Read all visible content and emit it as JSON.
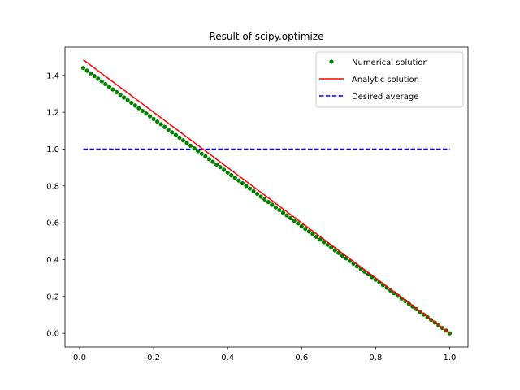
{
  "chart_data": {
    "type": "line",
    "title": "Result of scipy.optimize",
    "xlabel": "",
    "ylabel": "",
    "xlim": [
      -0.0395,
      1.0495
    ],
    "ylim": [
      -0.0744,
      1.5534
    ],
    "xticks": [
      "0.0",
      "0.2",
      "0.4",
      "0.6",
      "0.8",
      "1.0"
    ],
    "yticks": [
      "0.0",
      "0.2",
      "0.4",
      "0.6",
      "0.8",
      "1.0",
      "1.2",
      "1.4"
    ],
    "grid": false,
    "legend_position": "top-right",
    "series": [
      {
        "name": "Numerical solution",
        "style": "points",
        "color": "#008000",
        "x_range": [
          0.01,
          1.0
        ],
        "point_count": 100,
        "y_at_x0": 1.44,
        "y_at_x1": 0.0
      },
      {
        "name": "Analytic solution",
        "style": "solid-line",
        "color": "#ff0000",
        "x": [
          0.01,
          1.0
        ],
        "y": [
          1.485,
          0.0
        ]
      },
      {
        "name": "Desired average",
        "style": "dashed-line",
        "color": "#0000ff",
        "x": [
          0.01,
          1.0
        ],
        "y": [
          1.0,
          1.0
        ]
      }
    ]
  }
}
